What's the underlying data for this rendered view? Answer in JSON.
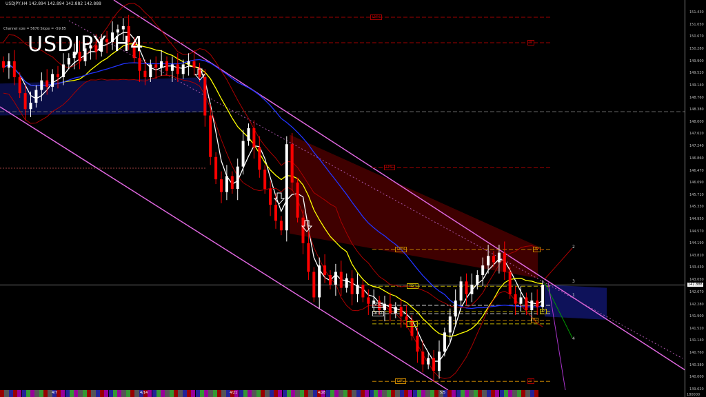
{
  "header": {
    "symbol_line": "USDJPY,H4  142.894 142.894 142.882 142.888",
    "big_title": "USDJPY H4",
    "channel_info": "Channel size = 5670 Slope = -59.85",
    "footer_value": "180000"
  },
  "colors": {
    "background": "#000000",
    "bull": "#ffffff",
    "bear": "#ff0000",
    "sma_fast": "#ffffff",
    "sma_mid": "#ffff00",
    "sma_slow": "#0000ff",
    "channel": "#dd66dd",
    "level_orange": "#c08000",
    "level_red": "#a00000"
  },
  "chart_data": {
    "type": "candlestick",
    "title": "USDJPY,H4",
    "price_ticks": [
      "151.430",
      "151.050",
      "150.670",
      "150.280",
      "149.900",
      "149.520",
      "149.140",
      "148.760",
      "148.380",
      "148.000",
      "147.620",
      "147.240",
      "146.860",
      "146.470",
      "146.090",
      "145.710",
      "145.330",
      "144.950",
      "144.570",
      "144.190",
      "143.810",
      "143.430",
      "143.050",
      "142.670",
      "142.280",
      "141.900",
      "141.520",
      "141.140",
      "140.760",
      "140.380",
      "140.000",
      "139.620"
    ],
    "ylim": [
      139.62,
      151.43
    ],
    "current_price": "142.888",
    "time_labels": [
      "4/7",
      "4/14",
      "4/21",
      "4/28",
      "5/5"
    ],
    "closes": [
      149.7,
      149.9,
      149.4,
      148.9,
      148.4,
      148.6,
      149.0,
      149.3,
      149.1,
      149.5,
      149.4,
      149.8,
      150.0,
      150.2,
      149.9,
      150.3,
      150.4,
      150.2,
      150.6,
      150.5,
      150.8,
      150.9,
      151.0,
      150.5,
      150.0,
      149.6,
      149.4,
      149.8,
      149.7,
      149.9,
      149.6,
      149.8,
      149.5,
      149.8,
      149.9,
      149.7,
      149.4,
      148.2,
      146.9,
      146.2,
      145.8,
      146.3,
      145.9,
      146.6,
      147.4,
      147.8,
      147.2,
      146.5,
      145.9,
      145.4,
      144.9,
      144.6,
      147.3,
      146.1,
      145.0,
      144.2,
      143.3,
      142.5,
      143.5,
      143.2,
      142.9,
      143.3,
      142.8,
      143.1,
      142.6,
      142.9,
      142.5,
      142.3,
      142.4,
      142.1,
      142.3,
      142.0,
      142.2,
      141.9,
      141.8,
      141.3,
      140.8,
      140.4,
      140.6,
      140.2,
      140.8,
      141.4,
      141.9,
      142.4,
      143.0,
      142.6,
      142.9,
      143.2,
      143.5,
      143.8,
      143.6,
      143.9,
      143.3,
      142.6,
      142.3,
      142.5,
      142.1,
      142.4,
      142.2,
      142.888
    ],
    "levels": [
      {
        "label": "LMH",
        "price": 151.28,
        "color": "#a00000"
      },
      {
        "label": "M",
        "price": 150.48,
        "color": "#a00000"
      },
      {
        "label": "LML",
        "price": 146.56,
        "color": "#a00000"
      },
      {
        "label": "LWH",
        "price": 144.0,
        "color": "#c08000"
      },
      {
        "label": "W",
        "price": 144.0,
        "color": "#c08000"
      },
      {
        "label": "YDH",
        "price": 142.85,
        "color": "#c0b000"
      },
      {
        "label": "YDC",
        "price": 142.25,
        "color": "#cccccc"
      },
      {
        "label": "YDO",
        "price": 141.99,
        "color": "#cccccc"
      },
      {
        "label": "YDL",
        "price": 141.67,
        "color": "#c0b000"
      },
      {
        "label": "D",
        "price": 142.05,
        "color": "#c0b000"
      },
      {
        "label": "W",
        "price": 141.78,
        "color": "#c08000"
      },
      {
        "label": "LWL",
        "price": 139.87,
        "color": "#c08000"
      },
      {
        "label": "M",
        "price": 139.87,
        "color": "#a00000"
      }
    ],
    "wave_labels": [
      "2",
      "3",
      "1",
      "4"
    ]
  }
}
